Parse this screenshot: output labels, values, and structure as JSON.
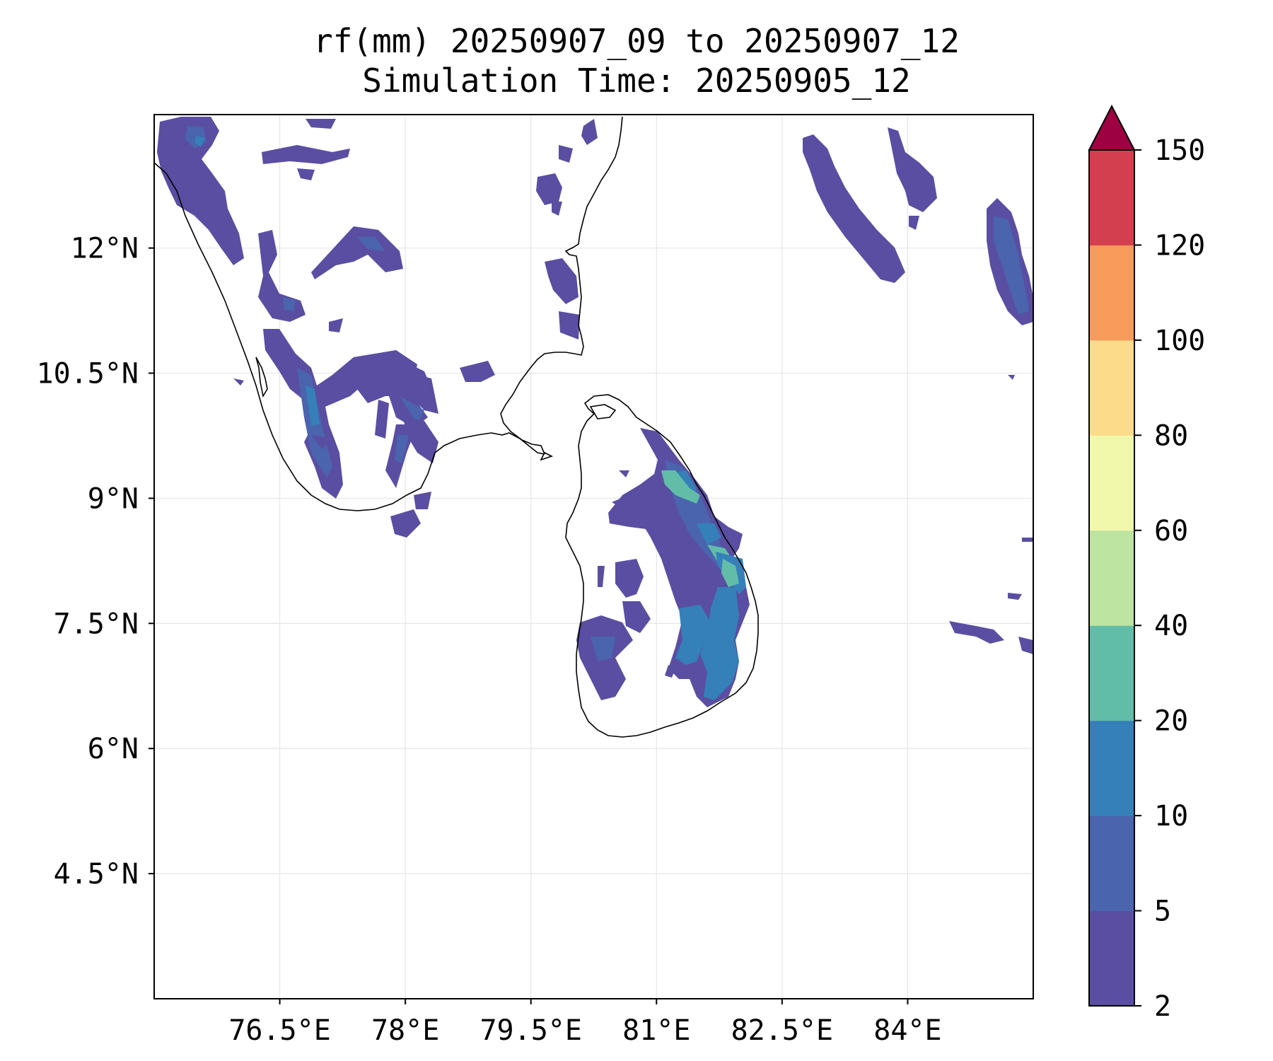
{
  "title": {
    "line1": "rf(mm) 20250907_09 to 20250907_12",
    "line2": "Simulation Time: 20250905_12"
  },
  "map": {
    "lon_range": [
      75.0,
      85.5
    ],
    "lat_range": [
      3.0,
      13.6
    ],
    "lon_ticks": [
      {
        "value": 76.5,
        "label": "76.5°E"
      },
      {
        "value": 78.0,
        "label": "78°E"
      },
      {
        "value": 79.5,
        "label": "79.5°E"
      },
      {
        "value": 81.0,
        "label": "81°E"
      },
      {
        "value": 82.5,
        "label": "82.5°E"
      },
      {
        "value": 84.0,
        "label": "84°E"
      }
    ],
    "lat_ticks": [
      {
        "value": 12.0,
        "label": "12°N"
      },
      {
        "value": 10.5,
        "label": "10.5°N"
      },
      {
        "value": 9.0,
        "label": "9°N"
      },
      {
        "value": 7.5,
        "label": "7.5°N"
      },
      {
        "value": 6.0,
        "label": "6°N"
      },
      {
        "value": 4.5,
        "label": "4.5°N"
      }
    ],
    "gridlines": true
  },
  "colorbar": {
    "levels": [
      "2",
      "5",
      "10",
      "20",
      "40",
      "60",
      "80",
      "100",
      "120",
      "150"
    ],
    "colors": [
      "#5a4ea2",
      "#4a64ad",
      "#3580b8",
      "#62bda8",
      "#bde4a0",
      "#f1f8ac",
      "#fcdc8a",
      "#f99b5a",
      "#d43f4f"
    ],
    "extend_color": "#9e0142",
    "extend": "max"
  },
  "chart_data": {
    "type": "heatmap",
    "title": "rf(mm) 20250907_09 to 20250907_12",
    "subtitle": "Simulation Time: 20250905_12",
    "xlabel": "",
    "ylabel": "",
    "xlim": [
      75.0,
      85.5
    ],
    "ylim": [
      3.0,
      13.6
    ],
    "x_ticks": [
      "76.5°E",
      "78°E",
      "79.5°E",
      "81°E",
      "82.5°E",
      "84°E"
    ],
    "y_ticks": [
      "12°N",
      "10.5°N",
      "9°N",
      "7.5°N",
      "6°N",
      "4.5°N"
    ],
    "colorbar_levels_mm": [
      2,
      5,
      10,
      20,
      40,
      60,
      80,
      100,
      120,
      150
    ],
    "grid": true
  }
}
